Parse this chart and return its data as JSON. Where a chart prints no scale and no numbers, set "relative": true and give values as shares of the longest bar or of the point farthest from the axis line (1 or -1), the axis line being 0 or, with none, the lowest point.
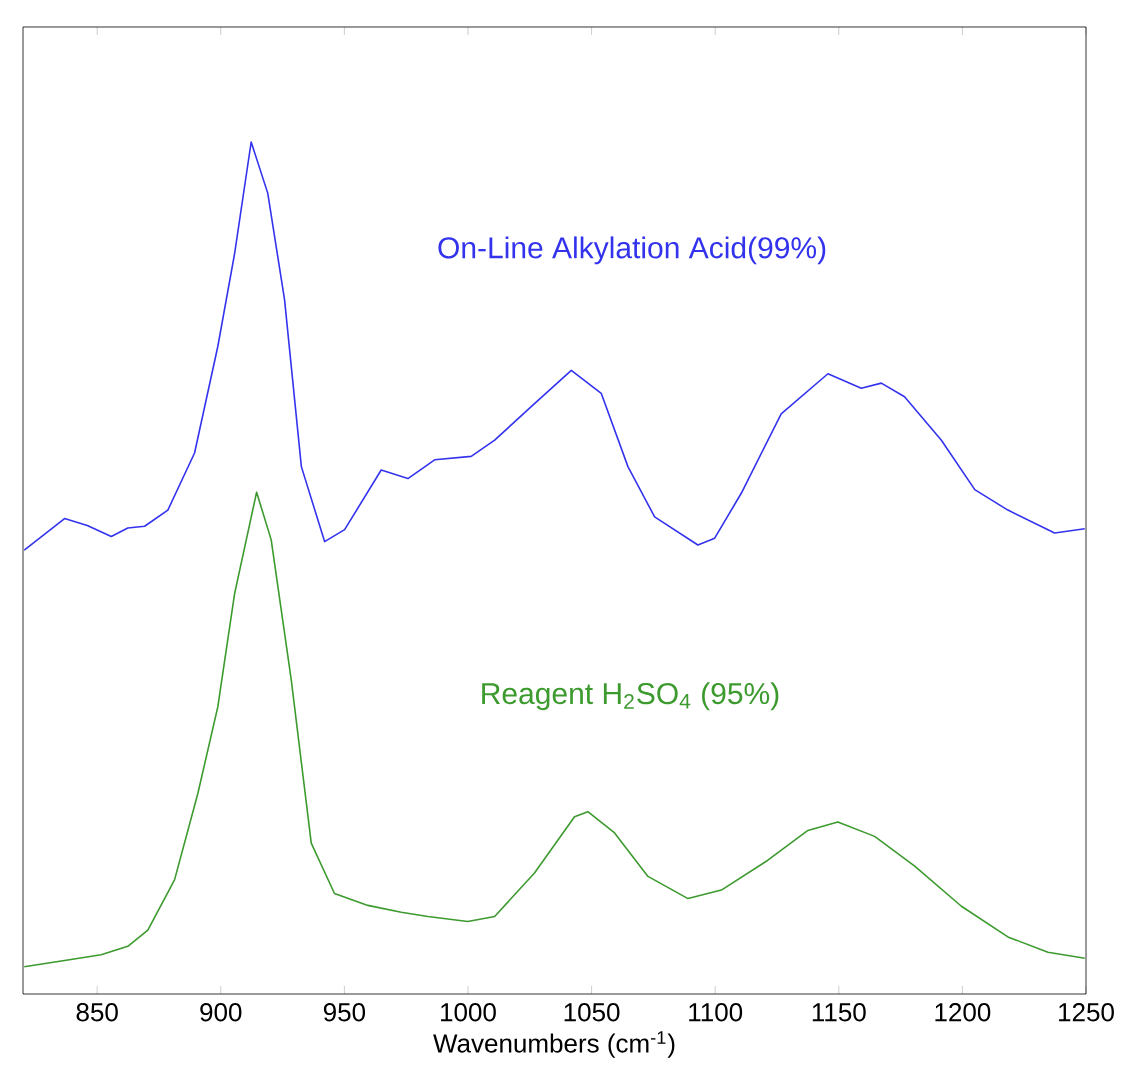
{
  "chart_data": {
    "type": "line",
    "relative": true,
    "xlabel": "Wavenumbers (cm$^{-1}$)",
    "xlim": [
      820,
      1250
    ],
    "xticks": [
      850,
      900,
      950,
      1000,
      1050,
      1100,
      1150,
      1200,
      1250
    ],
    "legend": false,
    "grid": false,
    "marker": "none",
    "line_style": "solid",
    "series": [
      {
        "name": "On-Line Alkylation Acid(99%)",
        "color": "#3333ee",
        "x": [
          820.5,
          836.8,
          846,
          855.7,
          862.4,
          869.2,
          878.6,
          889.4,
          898.8,
          905.6,
          912.3,
          919.0,
          925.8,
          932.6,
          942.0,
          950.1,
          964.9,
          975.7,
          986.5,
          1001.3,
          1010.8,
          1026.9,
          1041.8,
          1053.9,
          1064.7,
          1075.5,
          1093.0,
          1099.8,
          1110.6,
          1126.7,
          1145.6,
          1159.1,
          1167.2,
          1176.6,
          1191.5,
          1205,
          1218.4,
          1237.3,
          1249.5
        ],
        "values": [
          0.521,
          0.558,
          0.55,
          0.537,
          0.547,
          0.549,
          0.568,
          0.635,
          0.76,
          0.869,
          1.0,
          0.94,
          0.815,
          0.619,
          0.531,
          0.545,
          0.615,
          0.605,
          0.627,
          0.631,
          0.65,
          0.693,
          0.732,
          0.705,
          0.619,
          0.56,
          0.527,
          0.535,
          0.588,
          0.681,
          0.728,
          0.711,
          0.717,
          0.701,
          0.65,
          0.592,
          0.568,
          0.541,
          0.546
        ]
      },
      {
        "name": "Reagent H$_{2}$SO$_{4}$ (95%)",
        "color": "#3c9a2e",
        "x": [
          820.5,
          838.1,
          851.6,
          862.4,
          870.5,
          881.3,
          890.7,
          898.8,
          905.6,
          914.5,
          920.4,
          928.5,
          936.6,
          946,
          959.5,
          973,
          983.8,
          999.9,
          1010.8,
          1026.9,
          1043.1,
          1048.5,
          1059.3,
          1072.8,
          1089,
          1102.5,
          1121.3,
          1137.5,
          1149.6,
          1164.5,
          1180.7,
          1199.6,
          1218.4,
          1234.6,
          1249.5
        ],
        "values": [
          0.032,
          0.04,
          0.046,
          0.056,
          0.075,
          0.134,
          0.235,
          0.337,
          0.47,
          0.589,
          0.533,
          0.369,
          0.177,
          0.118,
          0.104,
          0.096,
          0.091,
          0.085,
          0.091,
          0.142,
          0.208,
          0.214,
          0.189,
          0.138,
          0.112,
          0.122,
          0.157,
          0.192,
          0.202,
          0.185,
          0.15,
          0.103,
          0.067,
          0.049,
          0.042
        ]
      }
    ]
  }
}
